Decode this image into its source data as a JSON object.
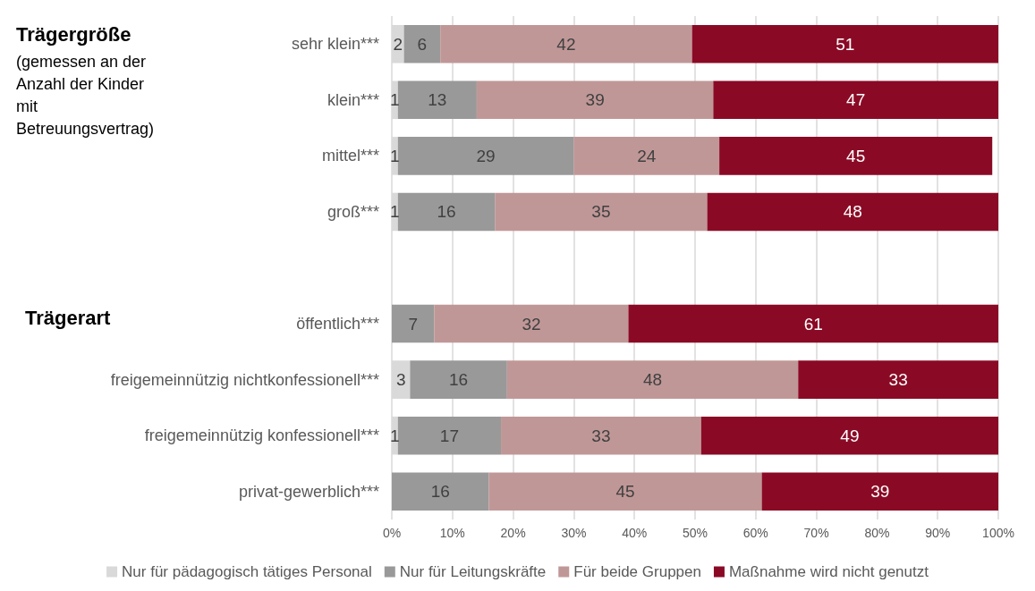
{
  "chart_data": {
    "type": "bar",
    "orientation": "horizontal",
    "stacked": true,
    "grid": "x",
    "legend": "bottom",
    "categories": [
      "sehr klein***",
      "klein***",
      "mittel***",
      "groß***",
      null,
      "öffentlich***",
      "freigemeinnützig nichtkonfessionell***",
      "freigemeinnützig konfessionell***",
      "privat-gewerblich***"
    ],
    "series": [
      {
        "name": "Nur für pädagogisch tätiges Personal",
        "color": "#d9d9d9",
        "values": [
          2,
          1,
          1,
          1,
          null,
          null,
          3,
          1,
          null
        ],
        "value_labels": [
          "2",
          "1",
          "1",
          "1",
          null,
          null,
          "3",
          "1",
          null
        ]
      },
      {
        "name": "Nur für Leitungskräfte",
        "color": "#999999",
        "values": [
          6,
          13,
          29,
          16,
          null,
          7,
          16,
          17,
          16
        ],
        "value_labels": [
          "6",
          "13",
          "29",
          "16",
          null,
          "7",
          "16",
          "17",
          "16"
        ]
      },
      {
        "name": "Für beide Gruppen",
        "color": "#c09797",
        "values": [
          41.5,
          39,
          24,
          35,
          null,
          32,
          48,
          33,
          45
        ],
        "value_labels": [
          "42",
          "39",
          "24",
          "35",
          null,
          "32",
          "48",
          "33",
          "45"
        ]
      },
      {
        "name": "Maßnahme wird nicht genutzt",
        "color": "#8a0a25",
        "values": [
          50.5,
          47,
          45,
          48,
          null,
          61,
          33,
          49,
          39
        ],
        "value_labels": [
          "51",
          "47",
          "45",
          "48",
          null,
          "61",
          "33",
          "49",
          "39"
        ]
      }
    ],
    "xlim": [
      0,
      100
    ],
    "xticks": [
      {
        "value": 0,
        "label": "0%"
      },
      {
        "value": 10,
        "label": "10%"
      },
      {
        "value": 20,
        "label": "20%"
      },
      {
        "value": 30,
        "label": "30%"
      },
      {
        "value": 40,
        "label": "40%"
      },
      {
        "value": 50,
        "label": "50%"
      },
      {
        "value": 60,
        "label": "60%"
      },
      {
        "value": 70,
        "label": "70%"
      },
      {
        "value": 80,
        "label": "80%"
      },
      {
        "value": 90,
        "label": "90%"
      },
      {
        "value": 100,
        "label": "100%"
      }
    ],
    "annotations": [
      "Trägergröße",
      "(gemessen an der Anzahl der Kinder mit Betreuungsvertrag)",
      "Trägerart"
    ]
  }
}
